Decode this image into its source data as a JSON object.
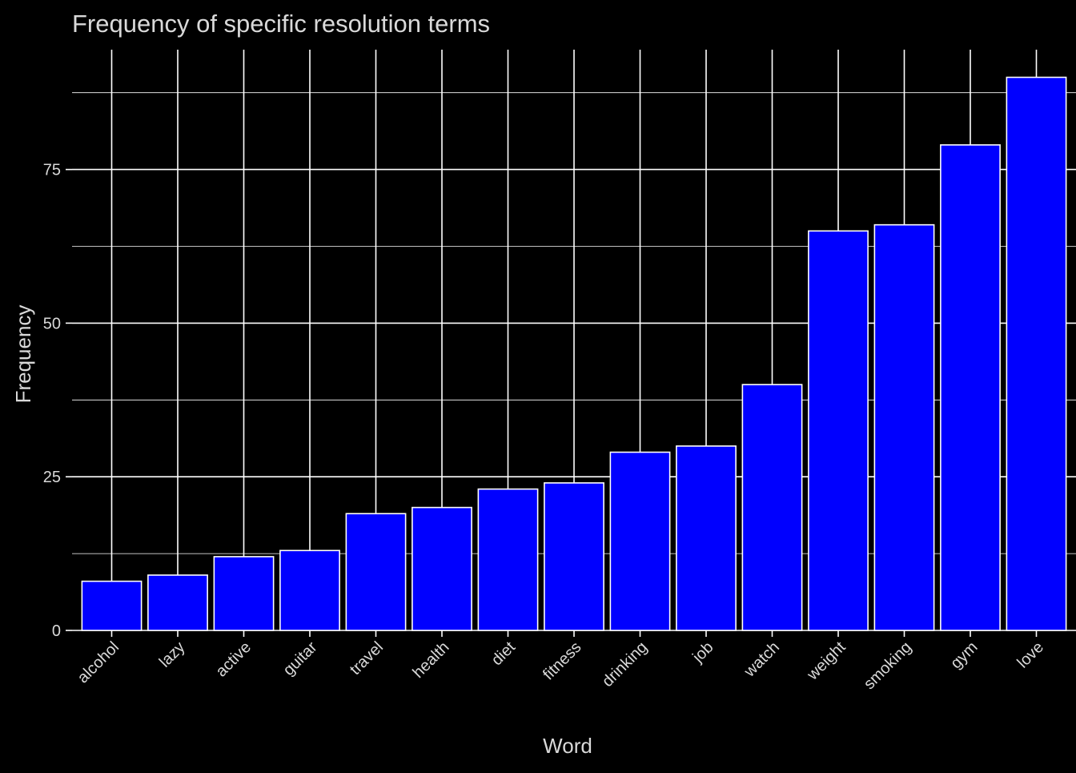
{
  "chart_data": {
    "type": "bar",
    "title": "Frequency of specific resolution terms",
    "xlabel": "Word",
    "ylabel": "Frequency",
    "categories": [
      "alcohol",
      "lazy",
      "active",
      "guitar",
      "travel",
      "health",
      "diet",
      "fitness",
      "drinking",
      "job",
      "watch",
      "weight",
      "smoking",
      "gym",
      "love"
    ],
    "values": [
      8,
      9,
      12,
      13,
      19,
      20,
      23,
      24,
      29,
      30,
      40,
      65,
      66,
      79,
      90
    ],
    "yticks": [
      0,
      25,
      50,
      75
    ],
    "ylim": [
      0,
      94.5
    ],
    "grid": true,
    "legend": "none",
    "colors": {
      "background": "#000000",
      "bar_fill": "#0000FF",
      "bar_outline": "#FFFFFF",
      "grid": "#FFFFFF",
      "text": "#D9D9D9"
    }
  }
}
